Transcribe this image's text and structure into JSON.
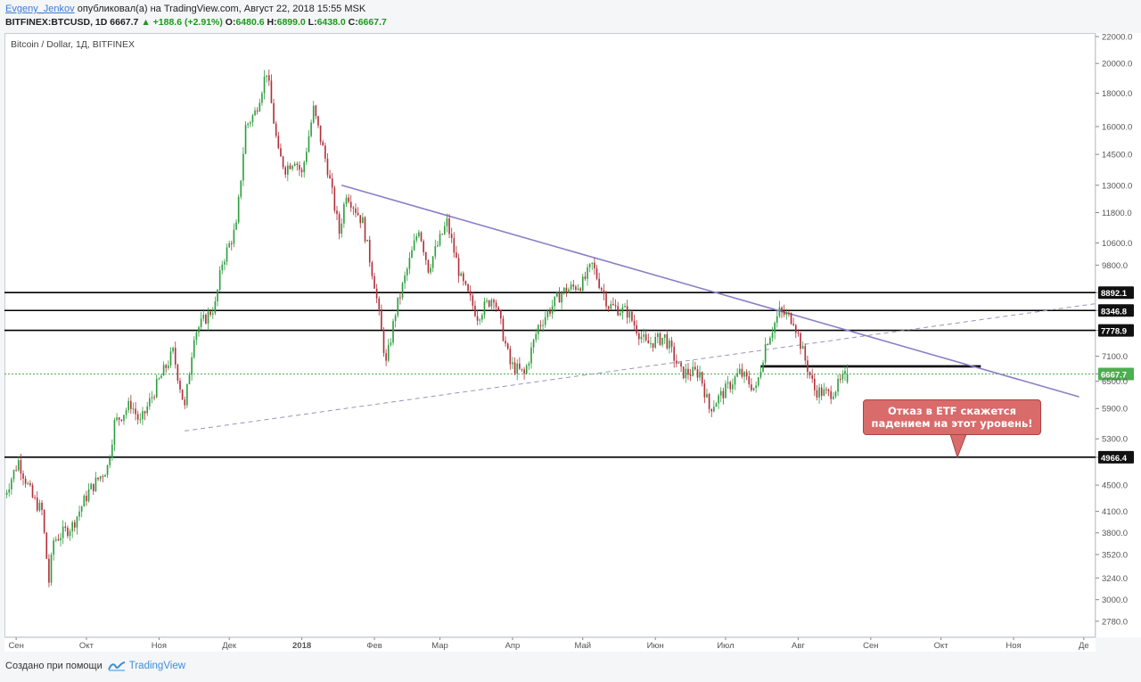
{
  "header": {
    "author": "Evgeny_Jenkov",
    "published_text": "опубликовал(а) на TradingView.com, Август 22, 2018 15:55 MSK",
    "symbol": "BITFINEX:BTCUSD, 1D",
    "last": "6667.7",
    "change": "+188.6 (+2.91%)",
    "change_arrow": "▲",
    "o_label": "O:",
    "o_value": "6480.6",
    "h_label": "H:",
    "h_value": "6899.0",
    "l_label": "L:",
    "l_value": "6438.0",
    "c_label": "C:",
    "c_value": "6667.7"
  },
  "chart_title": "Bitcoin / Dollar, 1Д, BITFINEX",
  "callout_text_line1": "Отказ в ETF скажется",
  "callout_text_line2": "падением на этот уровень!",
  "footer": {
    "created_with": "Создано при помощи",
    "brand": "TradingView"
  },
  "colors": {
    "up": "#2e9e3f",
    "down": "#b0303a",
    "trendline": "#8b7fc7",
    "level": "#000000",
    "current_price": "#4caf50",
    "callout": "#d96b6b"
  },
  "chart_data": {
    "type": "candlestick",
    "title": "Bitcoin / Dollar, 1Д, BITFINEX",
    "scale": "log",
    "ylim": [
      2650,
      22000
    ],
    "x_range": [
      "2017-08-27",
      "2018-12-06"
    ],
    "y_ticks": [
      22000,
      20000,
      18000,
      16000,
      14500,
      13000,
      11800,
      10600,
      9800,
      8892.1,
      8346.8,
      7778.9,
      7100,
      6667.7,
      6500,
      5900,
      5300,
      4966.4,
      4500,
      4100,
      3800,
      3520,
      3240,
      3000,
      2780
    ],
    "y_tick_labels": [
      "22000.0",
      "20000.0",
      "18000.0",
      "16000.0",
      "14500.0",
      "13000.0",
      "11800.0",
      "10600.0",
      "9800.0",
      "8892.1",
      "8346.8",
      "7778.9",
      "7100.0",
      "6667.7",
      "6500.0",
      "5900.0",
      "5300.0",
      "4966.4",
      "4500.0",
      "4100.0",
      "3800.0",
      "3520.0",
      "3240.0",
      "3000.0",
      "2780.0"
    ],
    "x_ticks": [
      {
        "date": "2017-09-01",
        "label": "Сен"
      },
      {
        "date": "2017-10-01",
        "label": "Окт"
      },
      {
        "date": "2017-11-01",
        "label": "Ноя"
      },
      {
        "date": "2017-12-01",
        "label": "Дек"
      },
      {
        "date": "2018-01-01",
        "label": "2018"
      },
      {
        "date": "2018-02-01",
        "label": "Фев"
      },
      {
        "date": "2018-03-01",
        "label": "Мар"
      },
      {
        "date": "2018-04-01",
        "label": "Апр"
      },
      {
        "date": "2018-05-01",
        "label": "Май"
      },
      {
        "date": "2018-06-01",
        "label": "Июн"
      },
      {
        "date": "2018-07-01",
        "label": "Июл"
      },
      {
        "date": "2018-08-01",
        "label": "Авг"
      },
      {
        "date": "2018-09-01",
        "label": "Сен"
      },
      {
        "date": "2018-10-01",
        "label": "Окт"
      },
      {
        "date": "2018-11-01",
        "label": "Ноя"
      },
      {
        "date": "2018-12-01",
        "label": "Де"
      }
    ],
    "price_path": [
      [
        "2017-08-27",
        4350
      ],
      [
        "2017-09-02",
        4900
      ],
      [
        "2017-09-08",
        4300
      ],
      [
        "2017-09-12",
        4100
      ],
      [
        "2017-09-15",
        3200
      ],
      [
        "2017-09-17",
        3700
      ],
      [
        "2017-09-25",
        3900
      ],
      [
        "2017-10-02",
        4400
      ],
      [
        "2017-10-10",
        4800
      ],
      [
        "2017-10-13",
        5600
      ],
      [
        "2017-10-20",
        6000
      ],
      [
        "2017-10-24",
        5600
      ],
      [
        "2017-10-31",
        6400
      ],
      [
        "2017-11-07",
        7200
      ],
      [
        "2017-11-12",
        5900
      ],
      [
        "2017-11-16",
        7700
      ],
      [
        "2017-11-25",
        8500
      ],
      [
        "2017-11-28",
        9900
      ],
      [
        "2017-12-04",
        11200
      ],
      [
        "2017-12-08",
        16000
      ],
      [
        "2017-12-12",
        16800
      ],
      [
        "2017-12-17",
        19500
      ],
      [
        "2017-12-22",
        14500
      ],
      [
        "2017-12-25",
        13800
      ],
      [
        "2017-12-29",
        14300
      ],
      [
        "2018-01-01",
        13500
      ],
      [
        "2018-01-06",
        17000
      ],
      [
        "2018-01-12",
        13800
      ],
      [
        "2018-01-17",
        11000
      ],
      [
        "2018-01-20",
        12700
      ],
      [
        "2018-01-27",
        11400
      ],
      [
        "2018-02-01",
        9200
      ],
      [
        "2018-02-06",
        6900
      ],
      [
        "2018-02-10",
        8300
      ],
      [
        "2018-02-20",
        11200
      ],
      [
        "2018-02-24",
        9700
      ],
      [
        "2018-03-04",
        11400
      ],
      [
        "2018-03-10",
        9300
      ],
      [
        "2018-03-17",
        8200
      ],
      [
        "2018-03-24",
        8800
      ],
      [
        "2018-03-31",
        6900
      ],
      [
        "2018-04-06",
        6650
      ],
      [
        "2018-04-12",
        7900
      ],
      [
        "2018-04-22",
        8900
      ],
      [
        "2018-05-01",
        9200
      ],
      [
        "2018-05-05",
        9800
      ],
      [
        "2018-05-12",
        8500
      ],
      [
        "2018-05-20",
        8300
      ],
      [
        "2018-05-28",
        7400
      ],
      [
        "2018-06-05",
        7600
      ],
      [
        "2018-06-12",
        6700
      ],
      [
        "2018-06-20",
        6700
      ],
      [
        "2018-06-24",
        5900
      ],
      [
        "2018-07-01",
        6300
      ],
      [
        "2018-07-07",
        6700
      ],
      [
        "2018-07-14",
        6300
      ],
      [
        "2018-07-18",
        7400
      ],
      [
        "2018-07-24",
        8300
      ],
      [
        "2018-07-30",
        8100
      ],
      [
        "2018-08-04",
        7000
      ],
      [
        "2018-08-08",
        6300
      ],
      [
        "2018-08-14",
        6200
      ],
      [
        "2018-08-18",
        6400
      ],
      [
        "2018-08-22",
        6667.7
      ]
    ],
    "last_candle": {
      "date": "2018-08-22",
      "open": 6480.6,
      "high": 6899.0,
      "low": 6438.0,
      "close": 6667.7
    },
    "horizontal_levels": [
      8892.1,
      8346.8,
      7778.9,
      4966.4
    ],
    "current_price_line": 6667.7,
    "short_resistance_line": {
      "from": "2018-07-16",
      "to": "2018-10-18",
      "value": 6850
    },
    "trendlines": [
      {
        "style": "solid",
        "points": [
          [
            "2018-01-18",
            13000
          ],
          [
            "2018-11-29",
            6150
          ]
        ]
      },
      {
        "style": "dashed",
        "points": [
          [
            "2017-11-12",
            5450
          ],
          [
            "2018-12-06",
            8550
          ]
        ]
      }
    ],
    "callout": {
      "date": "2018-10-08",
      "pointer_value": 4966.4
    }
  }
}
